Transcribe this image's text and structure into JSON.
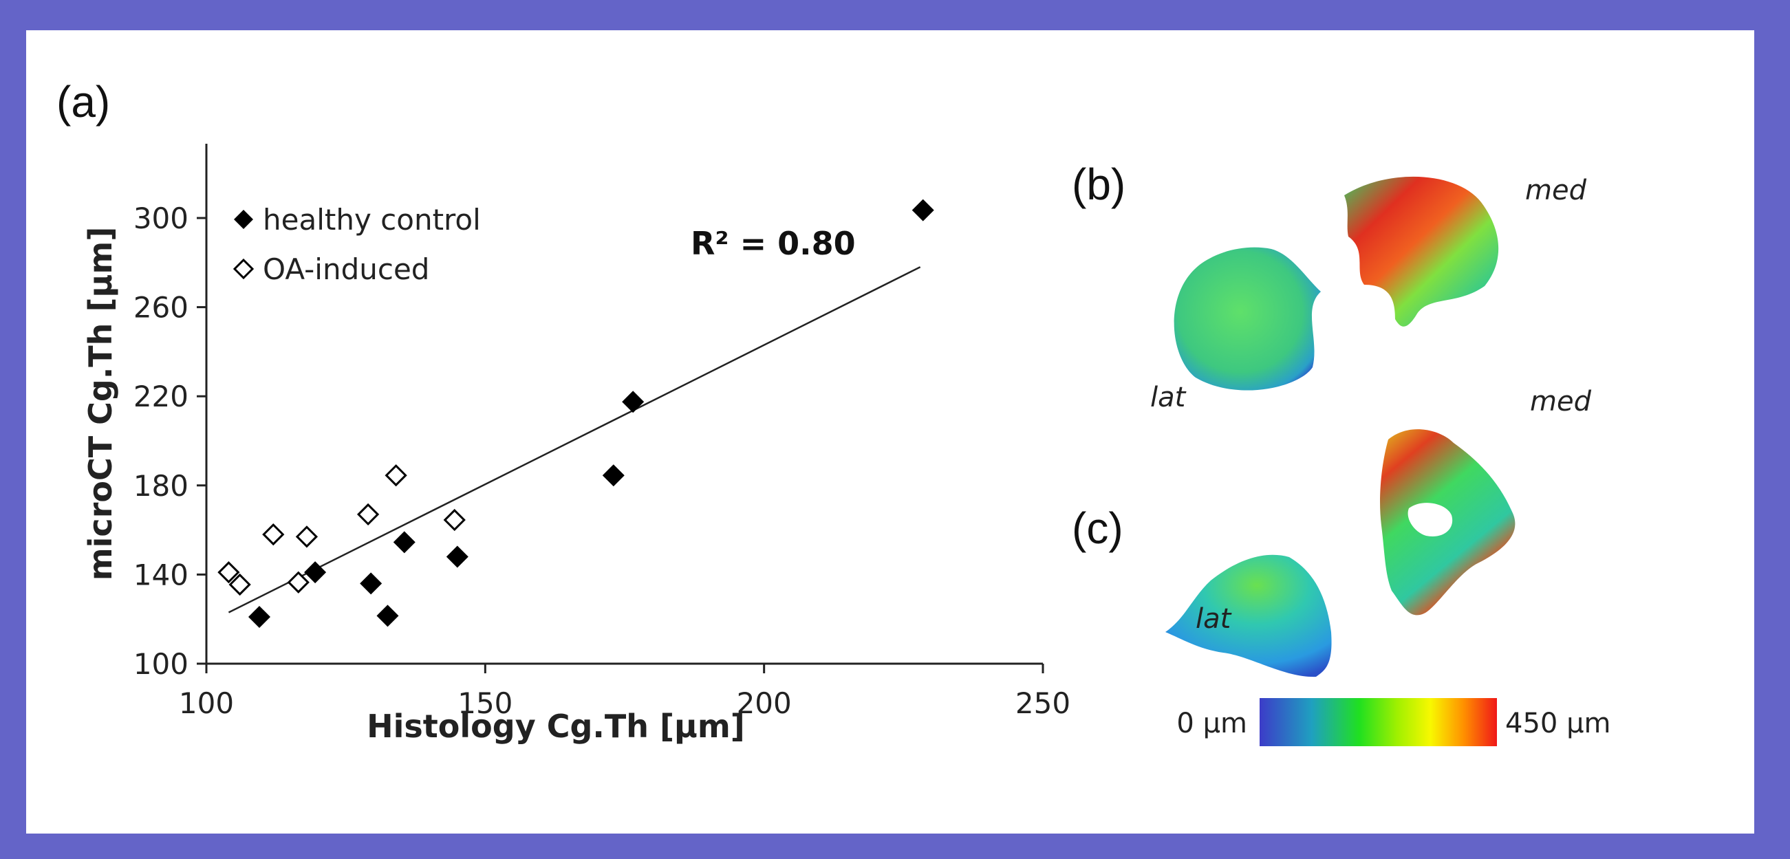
{
  "panels": {
    "a_label": "(a)",
    "b_label": "(b)",
    "c_label": "(c)"
  },
  "chart_data": {
    "type": "scatter",
    "xlabel": "Histology Cg.Th [μm]",
    "ylabel": "microCT Cg.Th [μm]",
    "xlim": [
      100,
      250
    ],
    "ylim": [
      100,
      300
    ],
    "x_ticks": [
      100,
      150,
      200,
      250
    ],
    "y_ticks": [
      100,
      140,
      180,
      220,
      260,
      300
    ],
    "grid": false,
    "legend_position": "top-left",
    "annotation": "R² = 0.80",
    "trendline": {
      "x": [
        104,
        228
      ],
      "y": [
        123,
        278
      ]
    },
    "series": [
      {
        "name": "healthy control",
        "marker": "filled-diamond",
        "color": "#000000",
        "points": [
          {
            "x": 109.5,
            "y": 121
          },
          {
            "x": 119.5,
            "y": 141
          },
          {
            "x": 129.5,
            "y": 136
          },
          {
            "x": 132.5,
            "y": 121.5
          },
          {
            "x": 135.5,
            "y": 154.5
          },
          {
            "x": 145,
            "y": 148
          },
          {
            "x": 173,
            "y": 184.5
          },
          {
            "x": 176.5,
            "y": 217.5
          },
          {
            "x": 228.5,
            "y": 303.5
          }
        ]
      },
      {
        "name": "OA-induced",
        "marker": "open-diamond",
        "color": "#000000",
        "points": [
          {
            "x": 104,
            "y": 141
          },
          {
            "x": 106,
            "y": 135.5
          },
          {
            "x": 112,
            "y": 158
          },
          {
            "x": 116.5,
            "y": 136.5
          },
          {
            "x": 118,
            "y": 157
          },
          {
            "x": 129,
            "y": 167
          },
          {
            "x": 134,
            "y": 184.5
          },
          {
            "x": 144.5,
            "y": 164.5
          }
        ]
      }
    ]
  },
  "renderings": {
    "b": {
      "lat_label": "lat",
      "med_label": "med"
    },
    "c": {
      "lat_label": "lat",
      "med_label": "med"
    }
  },
  "colorbar": {
    "min_label": "0 μm",
    "max_label": "450 μm",
    "colors": [
      "#3c3cc8",
      "#1f7fd0",
      "#18c8a0",
      "#20e020",
      "#a0f000",
      "#f8f800",
      "#ff9000",
      "#f01818"
    ]
  }
}
